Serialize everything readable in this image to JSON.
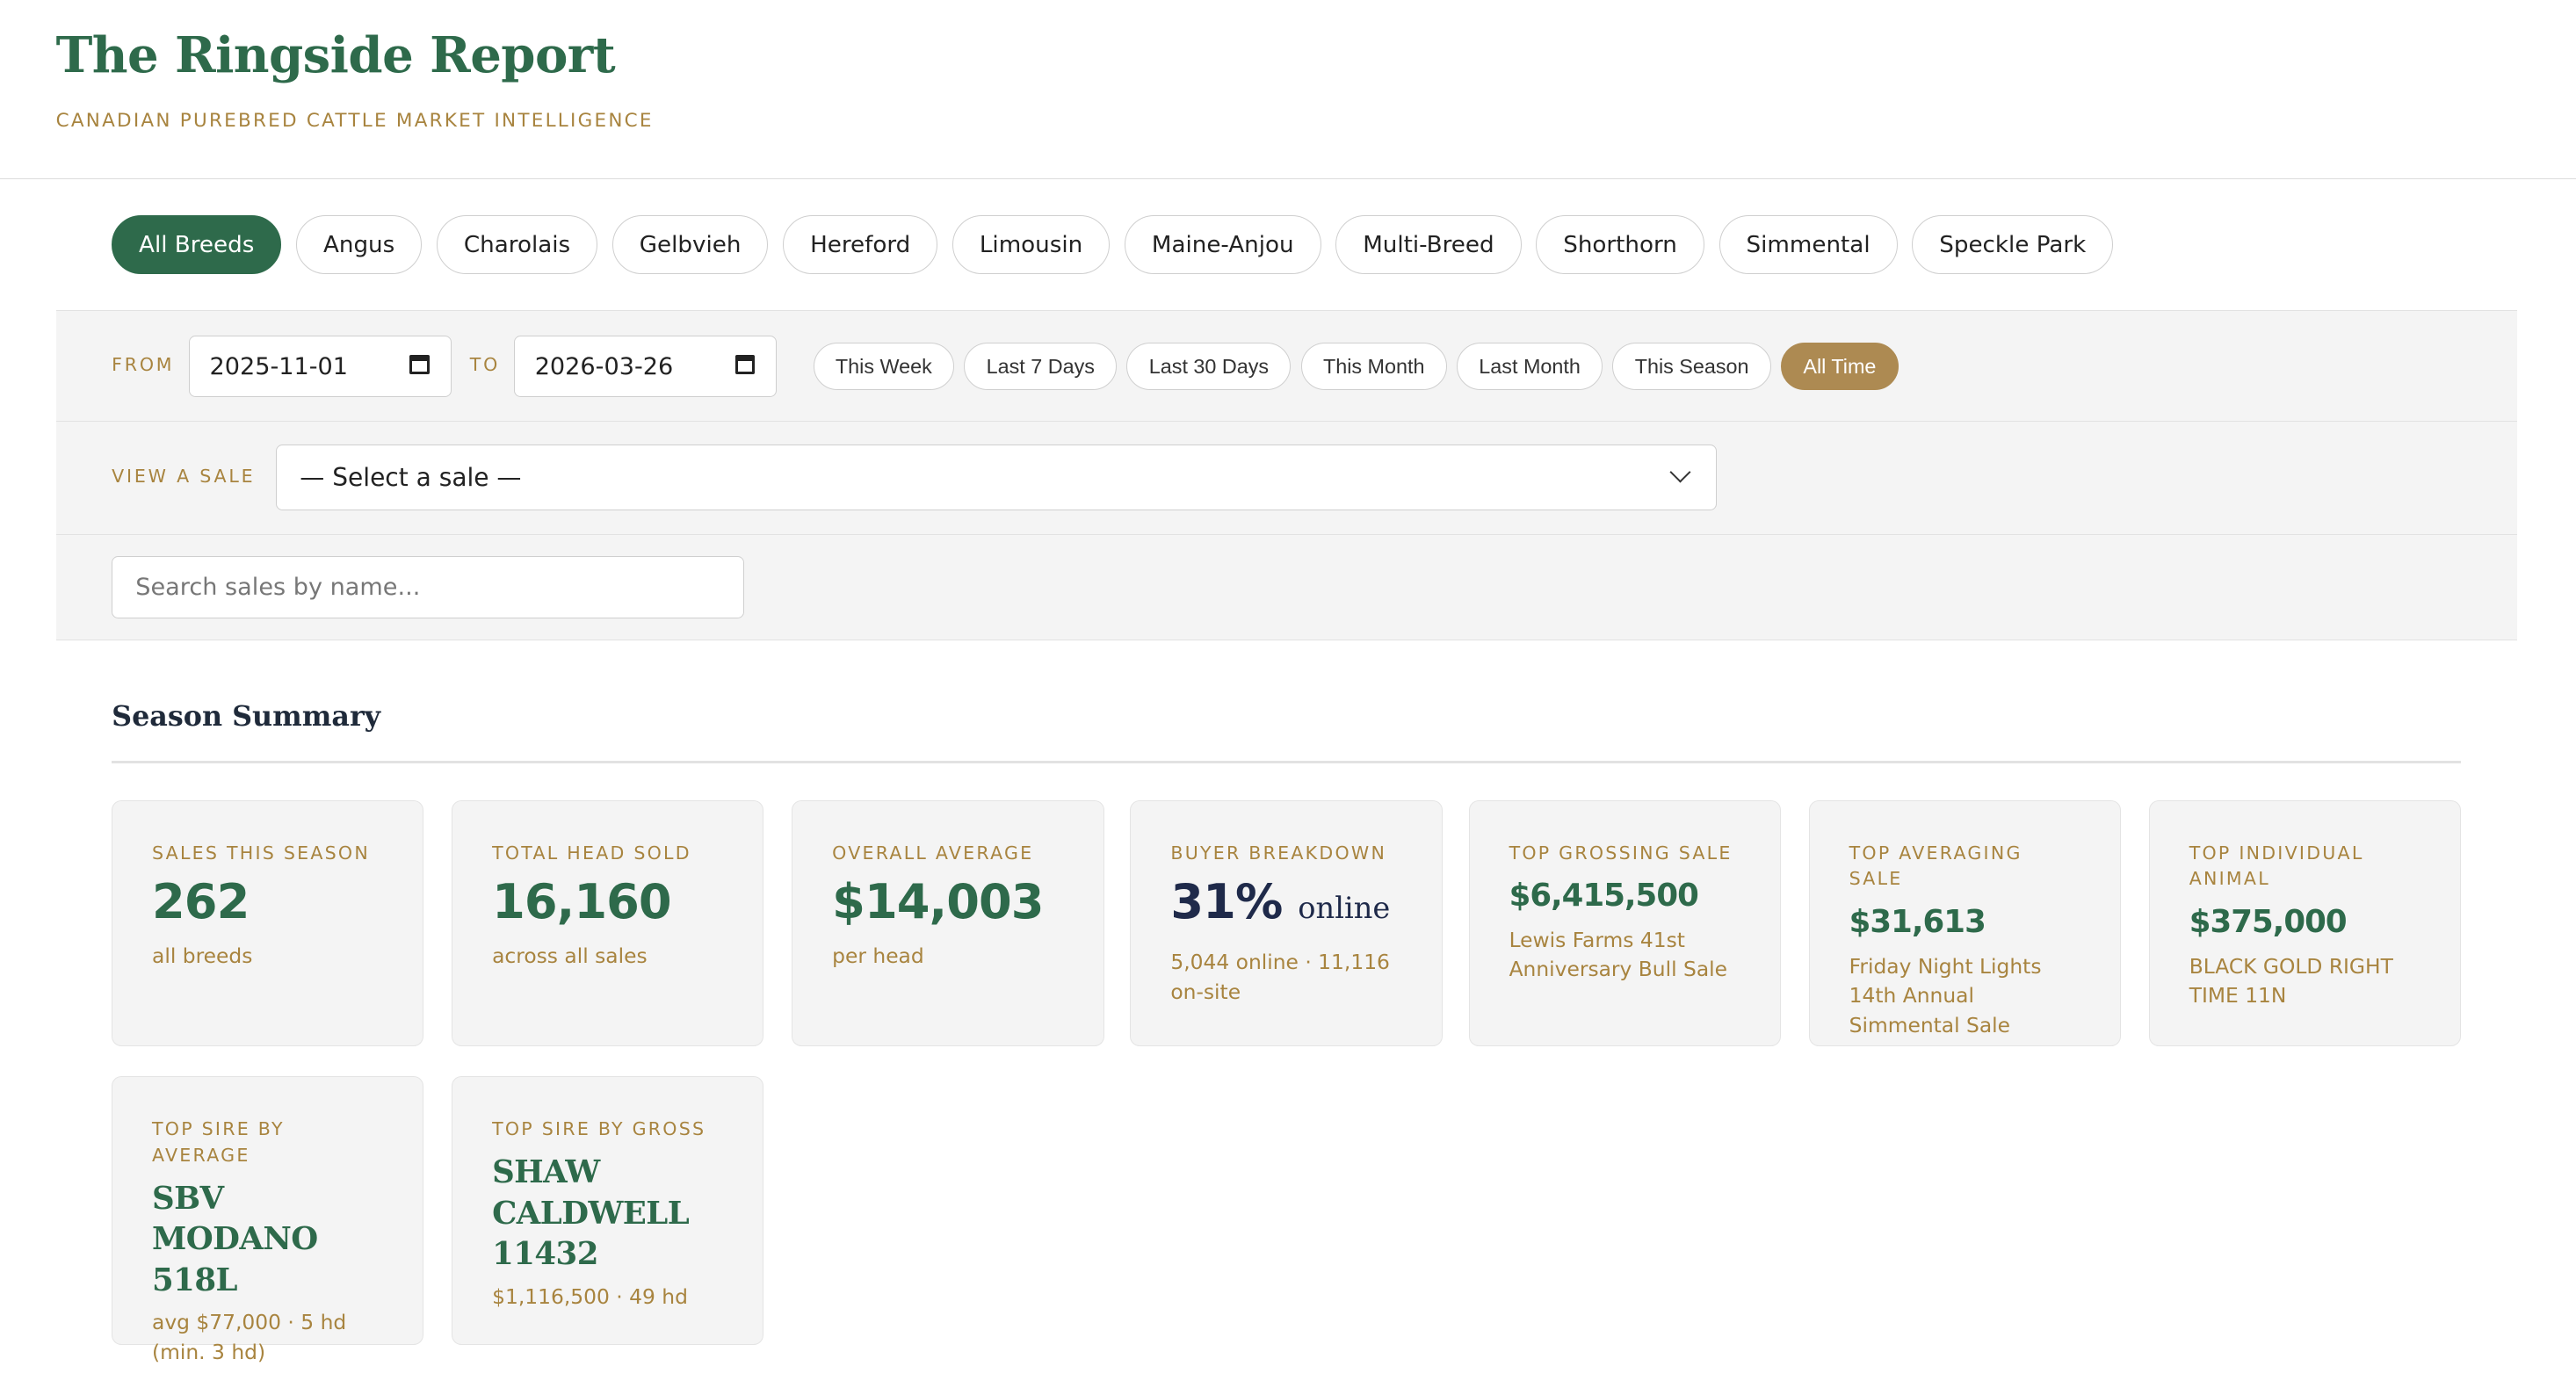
{
  "header": {
    "title": "The Ringside Report",
    "tagline": "CANADIAN PUREBRED CATTLE MARKET INTELLIGENCE"
  },
  "breeds": [
    {
      "label": "All Breeds",
      "active": true
    },
    {
      "label": "Angus",
      "active": false
    },
    {
      "label": "Charolais",
      "active": false
    },
    {
      "label": "Gelbvieh",
      "active": false
    },
    {
      "label": "Hereford",
      "active": false
    },
    {
      "label": "Limousin",
      "active": false
    },
    {
      "label": "Maine-Anjou",
      "active": false
    },
    {
      "label": "Multi-Breed",
      "active": false
    },
    {
      "label": "Shorthorn",
      "active": false
    },
    {
      "label": "Simmental",
      "active": false
    },
    {
      "label": "Speckle Park",
      "active": false
    }
  ],
  "filters": {
    "from_label": "FROM",
    "from_value": "2025-11-01",
    "to_label": "TO",
    "to_value": "2026-03-26",
    "presets": [
      {
        "label": "This Week",
        "active": false
      },
      {
        "label": "Last 7 Days",
        "active": false
      },
      {
        "label": "Last 30 Days",
        "active": false
      },
      {
        "label": "This Month",
        "active": false
      },
      {
        "label": "Last Month",
        "active": false
      },
      {
        "label": "This Season",
        "active": false
      },
      {
        "label": "All Time",
        "active": true
      }
    ],
    "sale_label": "VIEW A SALE",
    "sale_selected": "— Select a sale —",
    "search_placeholder": "Search sales by name..."
  },
  "summary": {
    "title": "Season Summary",
    "sales": {
      "label": "Sales This Season",
      "value": "262",
      "sub": "all breeds"
    },
    "head": {
      "label": "Total Head Sold",
      "value": "16,160",
      "sub": "across all sales"
    },
    "average": {
      "label": "Overall Average",
      "value": "$14,003",
      "sub": "per head"
    },
    "buyers": {
      "label": "Buyer Breakdown",
      "value": "31%",
      "suffix": "online",
      "sub": "5,044 online · 11,116 on-site"
    },
    "top_gross": {
      "label": "Top Grossing Sale",
      "value": "$6,415,500",
      "sub": "Lewis Farms 41st Anniversary Bull Sale"
    },
    "top_avg": {
      "label": "Top Averaging Sale",
      "value": "$31,613",
      "sub": "Friday Night Lights 14th Annual Simmental Sale"
    },
    "top_animal": {
      "label": "Top Individual Animal",
      "value": "$375,000",
      "sub": "BLACK GOLD RIGHT TIME 11N"
    },
    "sire_avg": {
      "label": "Top Sire by Average",
      "value": "SBV MODANO 518L",
      "sub": "avg $77,000 · 5 hd (min. 3 hd)"
    },
    "sire_gross": {
      "label": "Top Sire by Gross",
      "value": "SHAW CALDWELL 11432",
      "sub": "$1,116,500 · 49 hd"
    }
  },
  "colors": {
    "brand_green": "#2e6a4b",
    "accent_gold": "#ad8a52",
    "label_gold": "#a8843f"
  },
  "icons": {
    "date": "calendar-icon",
    "select": "chevron-down-icon"
  }
}
